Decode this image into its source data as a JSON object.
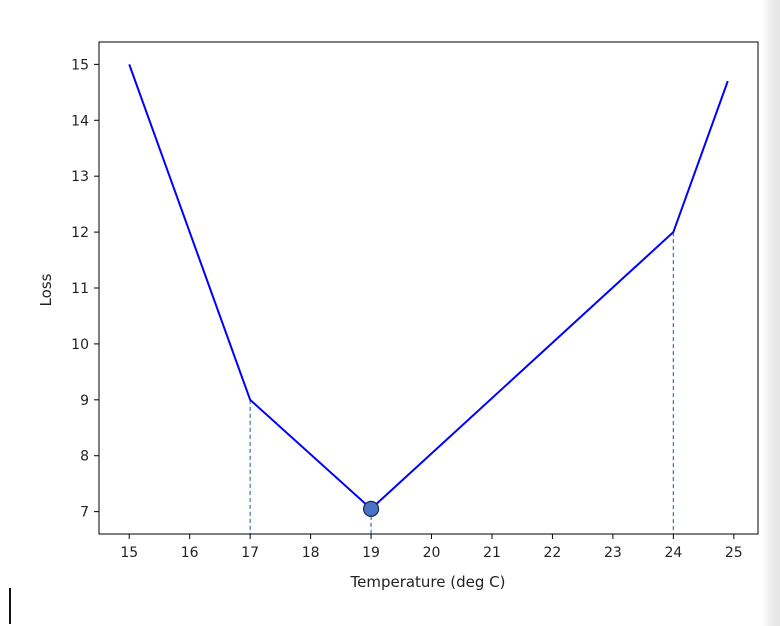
{
  "chart_data": {
    "type": "line",
    "title": "",
    "xlabel": "Temperature (deg C)",
    "ylabel": "Loss",
    "xlim": [
      14.5,
      25.4
    ],
    "ylim": [
      6.6,
      15.4
    ],
    "xticks": [
      15,
      16,
      17,
      18,
      19,
      20,
      21,
      22,
      23,
      24,
      25
    ],
    "yticks": [
      7,
      8,
      9,
      10,
      11,
      12,
      13,
      14,
      15
    ],
    "series": [
      {
        "x": [
          15,
          17,
          19,
          24,
          24.9
        ],
        "y": [
          15,
          9,
          7.05,
          12,
          14.7
        ],
        "color": "#0000ff"
      }
    ],
    "vlines": [
      {
        "x": 17,
        "y": 9
      },
      {
        "x": 19,
        "y": 7.05
      },
      {
        "x": 24,
        "y": 12
      }
    ],
    "marker": {
      "x": 19,
      "y": 7.05,
      "color": "#4a72c4"
    },
    "grid": false,
    "vline_color": "#3b6fc2"
  }
}
